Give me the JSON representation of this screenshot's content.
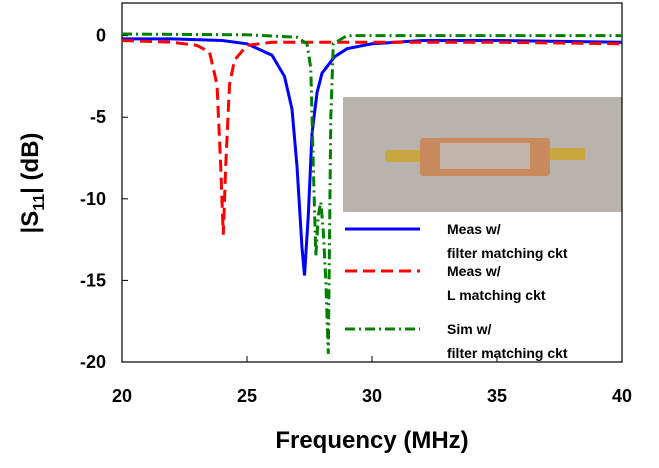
{
  "chart_data": {
    "type": "line",
    "xlabel": "Frequency (MHz)",
    "ylabel_parts": [
      "|S",
      "11",
      "| (dB)"
    ],
    "xlim": [
      20,
      40
    ],
    "xticks": [
      20,
      25,
      30,
      35,
      40
    ],
    "ylim": [
      -20,
      2
    ],
    "yticks": [
      0,
      -5,
      -10,
      -15,
      -20
    ],
    "legend": "lower right",
    "series": [
      {
        "name": [
          "Meas w/",
          "filter matching ckt"
        ],
        "color": "#0000ff",
        "linestyle": "solid",
        "x": [
          20,
          22,
          24,
          25,
          26,
          26.5,
          26.8,
          27.0,
          27.2,
          27.3,
          27.45,
          27.6,
          27.8,
          28,
          28.5,
          29,
          30,
          32,
          35,
          40
        ],
        "values": [
          -0.2,
          -0.2,
          -0.3,
          -0.5,
          -1.2,
          -2.5,
          -4.5,
          -8,
          -13,
          -14.7,
          -11,
          -6,
          -3.5,
          -2.3,
          -1.3,
          -0.8,
          -0.5,
          -0.3,
          -0.3,
          -0.4
        ]
      },
      {
        "name": [
          "Meas w/",
          "L matching ckt"
        ],
        "color": "#ff0000",
        "linestyle": "dashed",
        "x": [
          20,
          22,
          23,
          23.5,
          23.8,
          23.95,
          24.05,
          24.15,
          24.3,
          24.5,
          25,
          26,
          28,
          30,
          35,
          40
        ],
        "values": [
          -0.3,
          -0.4,
          -0.6,
          -1,
          -3,
          -8,
          -12.2,
          -8,
          -3,
          -1.5,
          -0.6,
          -0.4,
          -0.4,
          -0.4,
          -0.4,
          -0.5
        ]
      },
      {
        "name": [
          "Sim w/",
          "filter matching ckt"
        ],
        "color": "#008000",
        "linestyle": "dashdot",
        "x": [
          20,
          25,
          27,
          27.4,
          27.55,
          27.65,
          27.75,
          27.85,
          27.95,
          28.05,
          28.15,
          28.25,
          28.35,
          28.45,
          29,
          35,
          40
        ],
        "values": [
          0.1,
          0.05,
          -0.1,
          -0.5,
          -2,
          -8,
          -13.5,
          -11,
          -10.2,
          -12,
          -15,
          -19.5,
          -5,
          -0.5,
          0,
          0,
          0
        ]
      }
    ]
  }
}
